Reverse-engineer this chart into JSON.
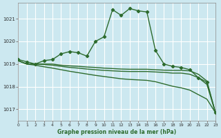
{
  "background_color": "#cce8f0",
  "grid_color": "#ffffff",
  "line_color": "#2d6b2d",
  "x_ticks": [
    0,
    1,
    2,
    3,
    4,
    5,
    6,
    7,
    8,
    9,
    10,
    11,
    12,
    13,
    14,
    15,
    16,
    17,
    18,
    19,
    20,
    21,
    22,
    23
  ],
  "y_ticks": [
    1017,
    1018,
    1019,
    1020,
    1021
  ],
  "ylim": [
    1016.5,
    1021.7
  ],
  "xlim": [
    0,
    23
  ],
  "xlabel": "Graphe pression niveau de la mer (hPa)",
  "line1": [
    1019.2,
    1019.1,
    1019.0,
    1019.15,
    1019.2,
    1019.45,
    1019.55,
    1019.5,
    1019.35,
    1020.0,
    1020.2,
    1021.4,
    1021.15,
    1021.45,
    1021.35,
    1021.3,
    1019.6,
    1019.0,
    1018.9,
    1018.85,
    1018.75,
    1018.4,
    1018.2,
    1016.85
  ],
  "line2": [
    1019.15,
    1019.0,
    1019.0,
    1019.0,
    1019.0,
    1018.95,
    1018.92,
    1018.9,
    1018.87,
    1018.85,
    1018.82,
    1018.8,
    1018.78,
    1018.77,
    1018.77,
    1018.77,
    1018.75,
    1018.73,
    1018.72,
    1018.72,
    1018.7,
    1018.55,
    1018.25,
    1016.85
  ],
  "line3": [
    1019.15,
    1019.0,
    1019.0,
    1018.98,
    1018.95,
    1018.9,
    1018.85,
    1018.82,
    1018.78,
    1018.75,
    1018.72,
    1018.7,
    1018.68,
    1018.67,
    1018.67,
    1018.67,
    1018.65,
    1018.63,
    1018.6,
    1018.6,
    1018.55,
    1018.4,
    1018.1,
    1016.85
  ],
  "line4": [
    1019.15,
    1019.0,
    1018.95,
    1018.88,
    1018.82,
    1018.75,
    1018.68,
    1018.62,
    1018.56,
    1018.5,
    1018.45,
    1018.4,
    1018.35,
    1018.32,
    1018.3,
    1018.28,
    1018.22,
    1018.12,
    1018.02,
    1017.95,
    1017.85,
    1017.65,
    1017.45,
    1016.85
  ]
}
